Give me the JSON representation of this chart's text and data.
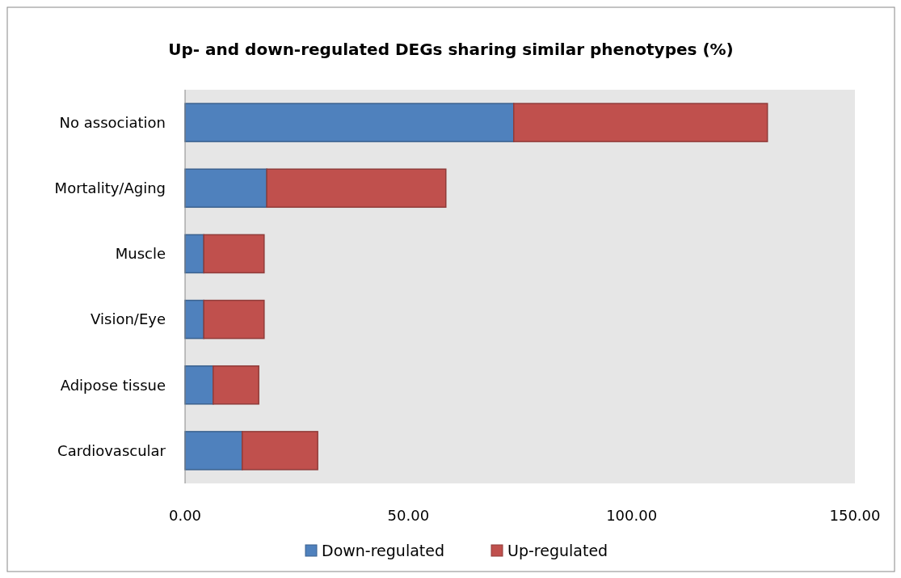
{
  "chart_data": {
    "type": "bar",
    "orientation": "horizontal",
    "stacked": true,
    "title": "Up- and down-regulated DEGs sharing similar phenotypes (%)",
    "categories": [
      "No association",
      "Mortality/Aging",
      "Muscle",
      "Vision/Eye",
      "Adipose tissue",
      "Cardiovascular"
    ],
    "series": [
      {
        "name": "Down-regulated",
        "color": "#4f81bd",
        "values": [
          73.6,
          18.3,
          4.2,
          4.2,
          6.3,
          12.8
        ]
      },
      {
        "name": "Up-regulated",
        "color": "#c0504d",
        "values": [
          56.8,
          40.1,
          13.5,
          13.5,
          10.2,
          16.9
        ]
      }
    ],
    "xlim": [
      0,
      150
    ],
    "xticks": [
      {
        "value": 0,
        "label": "0.00"
      },
      {
        "value": 50,
        "label": "50.00"
      },
      {
        "value": 100,
        "label": "100.00"
      },
      {
        "value": 150,
        "label": "150.00"
      }
    ],
    "grid": false,
    "legend": "bottom"
  }
}
